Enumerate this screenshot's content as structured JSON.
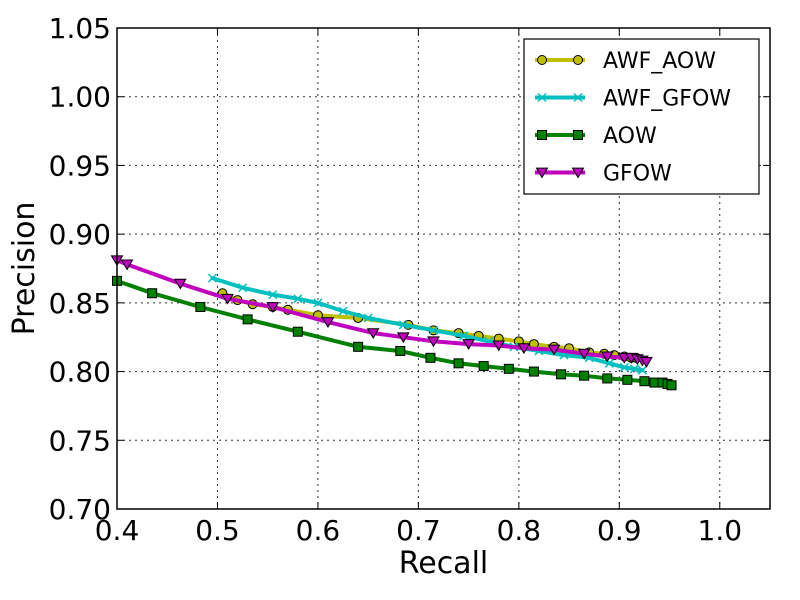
{
  "chart_data": {
    "type": "line",
    "xlabel": "Recall",
    "ylabel": "Precision",
    "xlim": [
      0.4,
      1.05
    ],
    "ylim": [
      0.7,
      1.05
    ],
    "xticks": [
      "0.4",
      "0.5",
      "0.6",
      "0.7",
      "0.8",
      "0.9",
      "1.0"
    ],
    "yticks": [
      "0.70",
      "0.75",
      "0.80",
      "0.85",
      "0.90",
      "0.95",
      "1.00",
      "1.05"
    ],
    "grid": true,
    "legend_position": "top-right",
    "series": [
      {
        "name": "AWF_AOW",
        "color": "#bfbf00",
        "marker": "circle",
        "x": [
          0.505,
          0.52,
          0.535,
          0.555,
          0.57,
          0.6,
          0.64,
          0.69,
          0.715,
          0.74,
          0.76,
          0.78,
          0.8,
          0.815,
          0.835,
          0.85,
          0.87,
          0.885,
          0.895,
          0.905,
          0.912,
          0.917
        ],
        "y": [
          0.857,
          0.852,
          0.849,
          0.847,
          0.845,
          0.841,
          0.839,
          0.834,
          0.83,
          0.828,
          0.826,
          0.824,
          0.822,
          0.82,
          0.818,
          0.817,
          0.814,
          0.813,
          0.812,
          0.811,
          0.81,
          0.81
        ]
      },
      {
        "name": "AWF_GFOW",
        "color": "#00bfbf",
        "marker": "x",
        "x": [
          0.495,
          0.525,
          0.555,
          0.58,
          0.6,
          0.625,
          0.65,
          0.685,
          0.715,
          0.745,
          0.77,
          0.795,
          0.82,
          0.845,
          0.87,
          0.89,
          0.905,
          0.915,
          0.923
        ],
        "y": [
          0.868,
          0.861,
          0.856,
          0.853,
          0.85,
          0.844,
          0.839,
          0.834,
          0.83,
          0.826,
          0.822,
          0.818,
          0.815,
          0.812,
          0.81,
          0.806,
          0.803,
          0.802,
          0.801
        ]
      },
      {
        "name": "AOW",
        "color": "#008000",
        "marker": "square",
        "x": [
          0.4,
          0.435,
          0.483,
          0.53,
          0.58,
          0.64,
          0.682,
          0.712,
          0.74,
          0.765,
          0.79,
          0.815,
          0.842,
          0.865,
          0.888,
          0.908,
          0.925,
          0.935,
          0.943,
          0.948,
          0.952
        ],
        "y": [
          0.866,
          0.857,
          0.847,
          0.838,
          0.829,
          0.818,
          0.815,
          0.81,
          0.806,
          0.804,
          0.802,
          0.8,
          0.798,
          0.797,
          0.795,
          0.794,
          0.793,
          0.792,
          0.792,
          0.791,
          0.79
        ]
      },
      {
        "name": "GFOW",
        "color": "#bf00bf",
        "marker": "triangle-down",
        "x": [
          0.4,
          0.41,
          0.463,
          0.51,
          0.555,
          0.61,
          0.655,
          0.685,
          0.715,
          0.75,
          0.78,
          0.805,
          0.835,
          0.865,
          0.888,
          0.905,
          0.912,
          0.918,
          0.923,
          0.927
        ],
        "y": [
          0.881,
          0.878,
          0.864,
          0.853,
          0.847,
          0.836,
          0.828,
          0.825,
          0.822,
          0.82,
          0.819,
          0.817,
          0.816,
          0.813,
          0.811,
          0.81,
          0.81,
          0.809,
          0.808,
          0.807
        ]
      }
    ]
  }
}
